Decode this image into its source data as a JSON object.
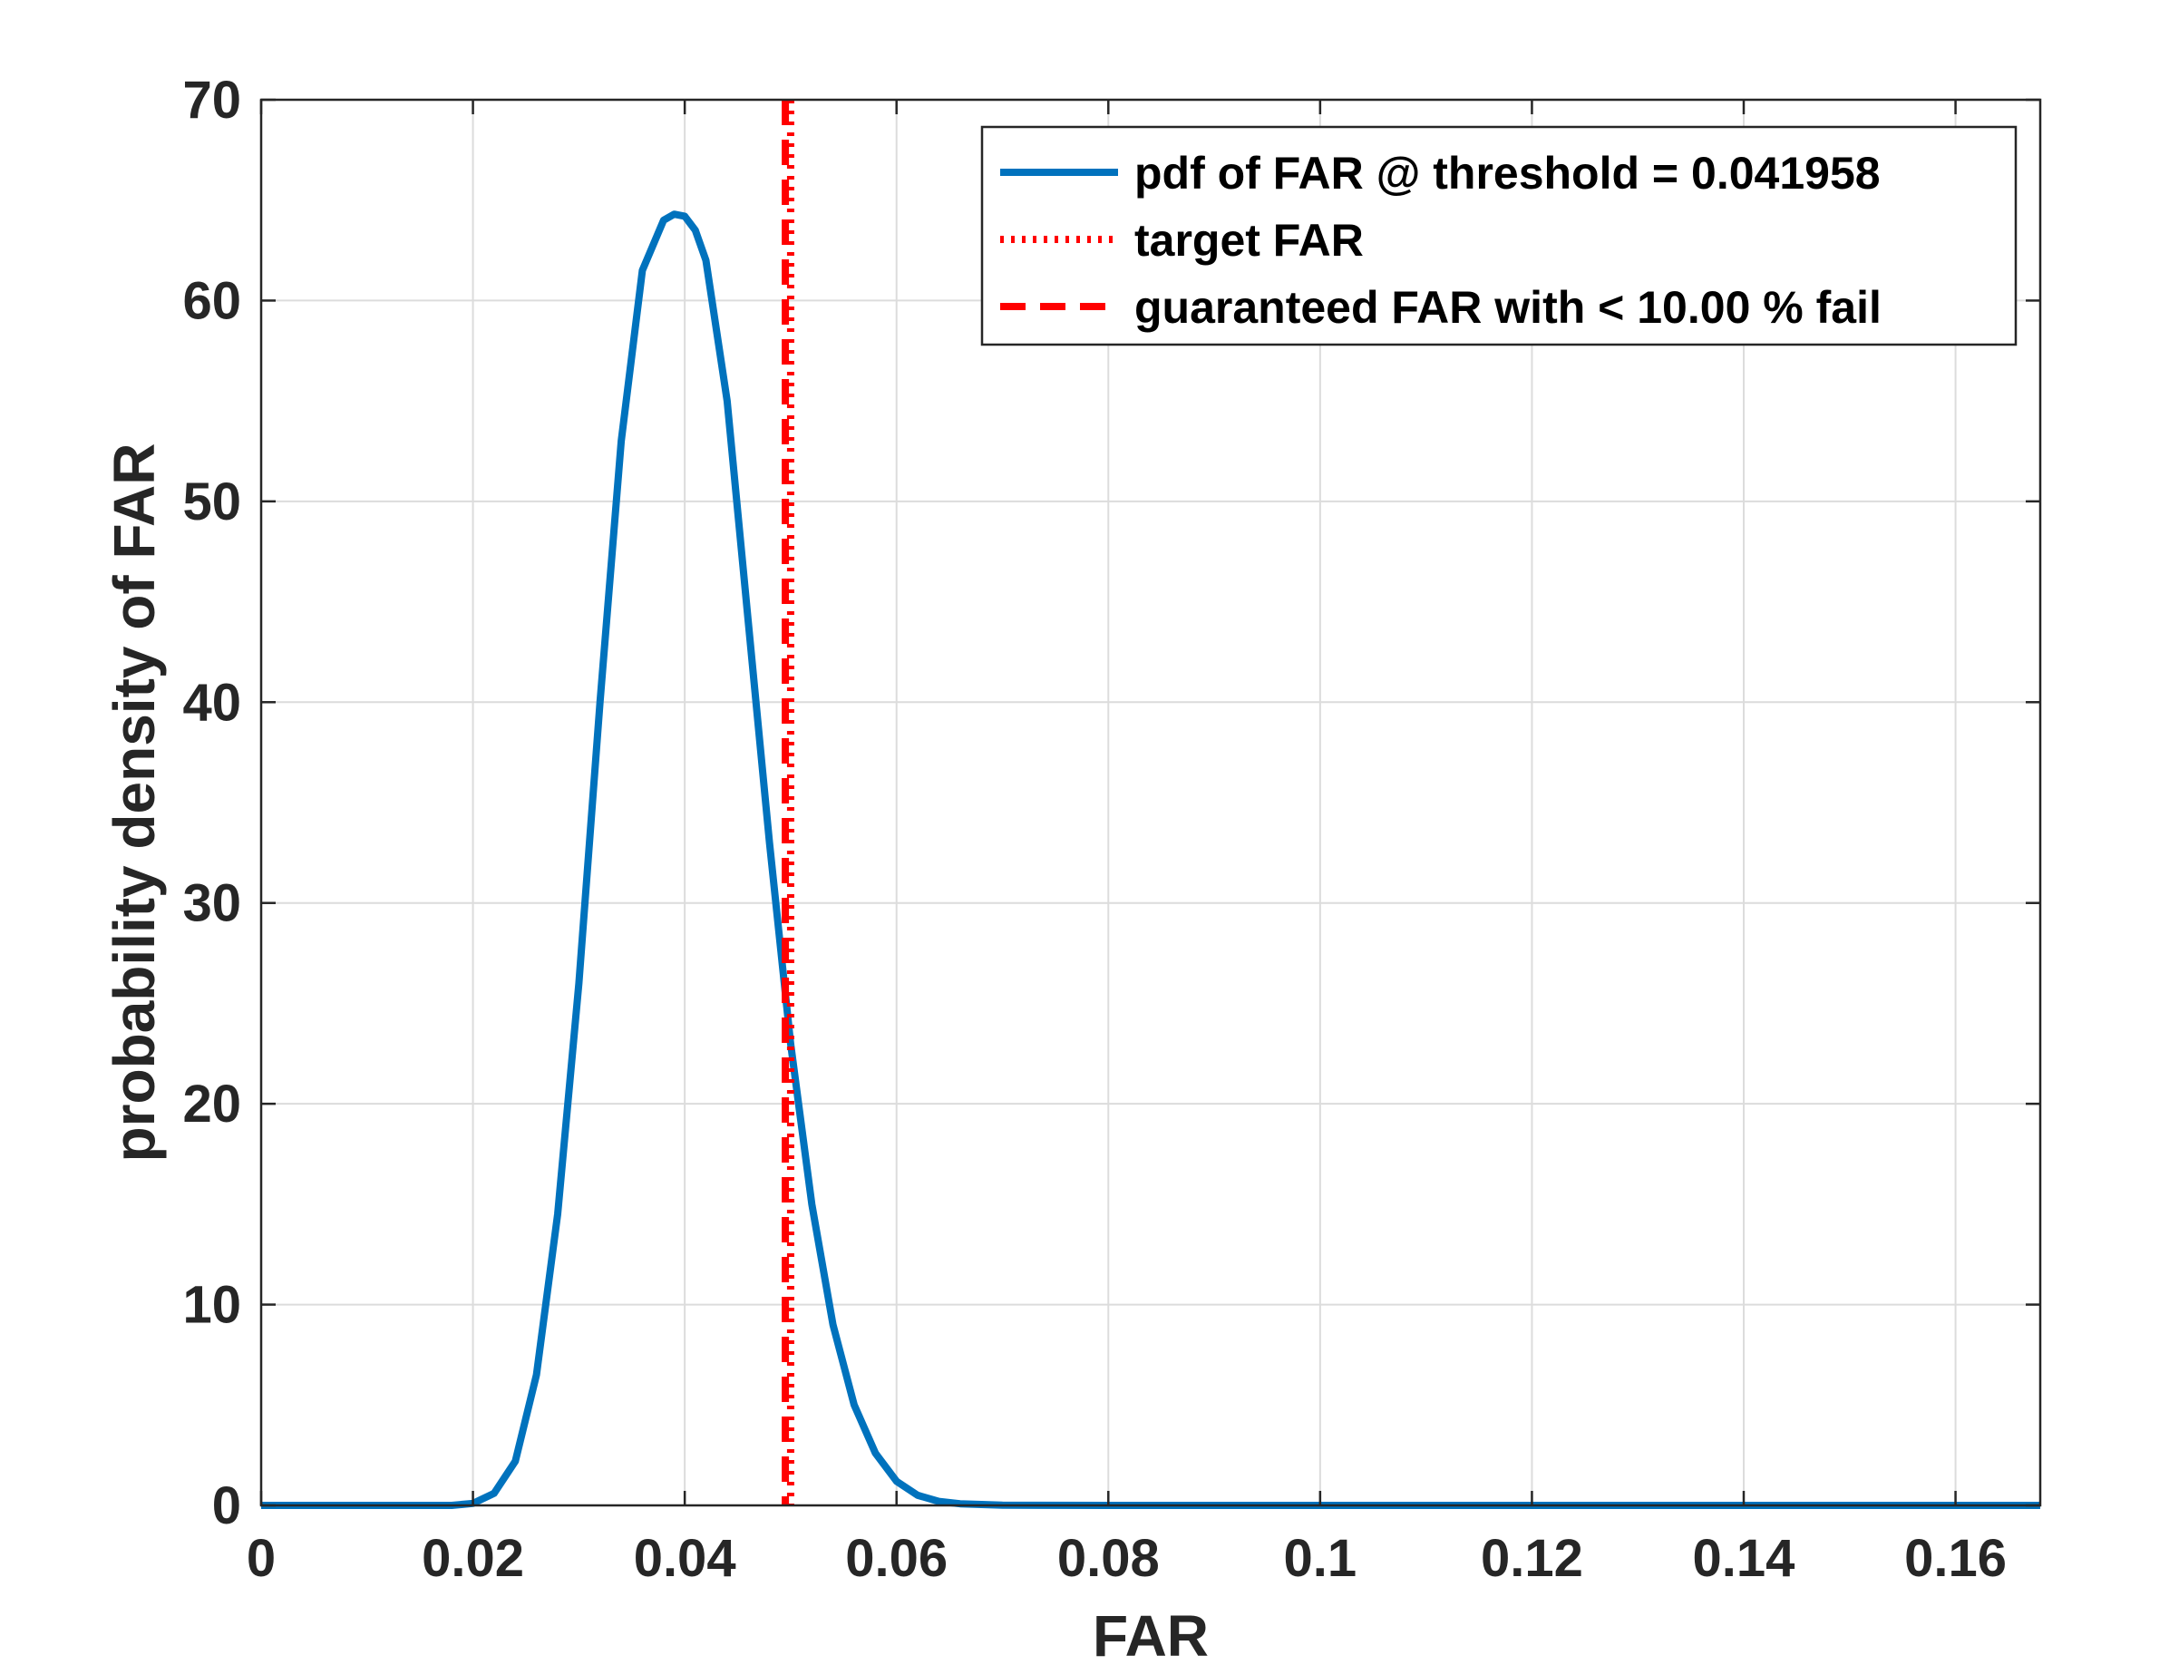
{
  "chart_data": {
    "type": "line",
    "xlabel": "FAR",
    "ylabel": "probability density of FAR",
    "xlim": [
      0,
      0.168
    ],
    "ylim": [
      0,
      70
    ],
    "grid": true,
    "legend_position": "top-right",
    "x_ticks": [
      {
        "value": 0,
        "label": "0"
      },
      {
        "value": 0.02,
        "label": "0.02"
      },
      {
        "value": 0.04,
        "label": "0.04"
      },
      {
        "value": 0.06,
        "label": "0.06"
      },
      {
        "value": 0.08,
        "label": "0.08"
      },
      {
        "value": 0.1,
        "label": "0.1"
      },
      {
        "value": 0.12,
        "label": "0.12"
      },
      {
        "value": 0.14,
        "label": "0.14"
      },
      {
        "value": 0.16,
        "label": "0.16"
      }
    ],
    "y_ticks": [
      {
        "value": 0,
        "label": "0"
      },
      {
        "value": 10,
        "label": "10"
      },
      {
        "value": 20,
        "label": "20"
      },
      {
        "value": 30,
        "label": "30"
      },
      {
        "value": 40,
        "label": "40"
      },
      {
        "value": 50,
        "label": "50"
      },
      {
        "value": 60,
        "label": "60"
      },
      {
        "value": 70,
        "label": "70"
      }
    ],
    "series": [
      {
        "name": "pdf of FAR @ threshold = 0.041958",
        "color": "#0072BD",
        "style": "solid",
        "x": [
          0,
          0.018,
          0.02,
          0.022,
          0.024,
          0.026,
          0.028,
          0.03,
          0.032,
          0.034,
          0.036,
          0.038,
          0.039,
          0.04,
          0.041,
          0.042,
          0.044,
          0.046,
          0.048,
          0.05,
          0.052,
          0.054,
          0.056,
          0.058,
          0.06,
          0.062,
          0.064,
          0.066,
          0.07,
          0.08,
          0.168
        ],
        "y": [
          0,
          0,
          0.1,
          0.6,
          2.2,
          6.5,
          14.5,
          26,
          40,
          53,
          61.5,
          64,
          64.3,
          64.2,
          63.5,
          62,
          55,
          44,
          33,
          23,
          15,
          9,
          5,
          2.6,
          1.2,
          0.5,
          0.2,
          0.08,
          0.01,
          0,
          0
        ]
      },
      {
        "name": "target FAR",
        "color": "#FF0000",
        "style": "dotted",
        "vertical_x": 0.05
      },
      {
        "name": "guaranteed FAR with < 10.00 % fail",
        "color": "#FF0000",
        "style": "dashed",
        "vertical_x": 0.0495
      }
    ]
  }
}
